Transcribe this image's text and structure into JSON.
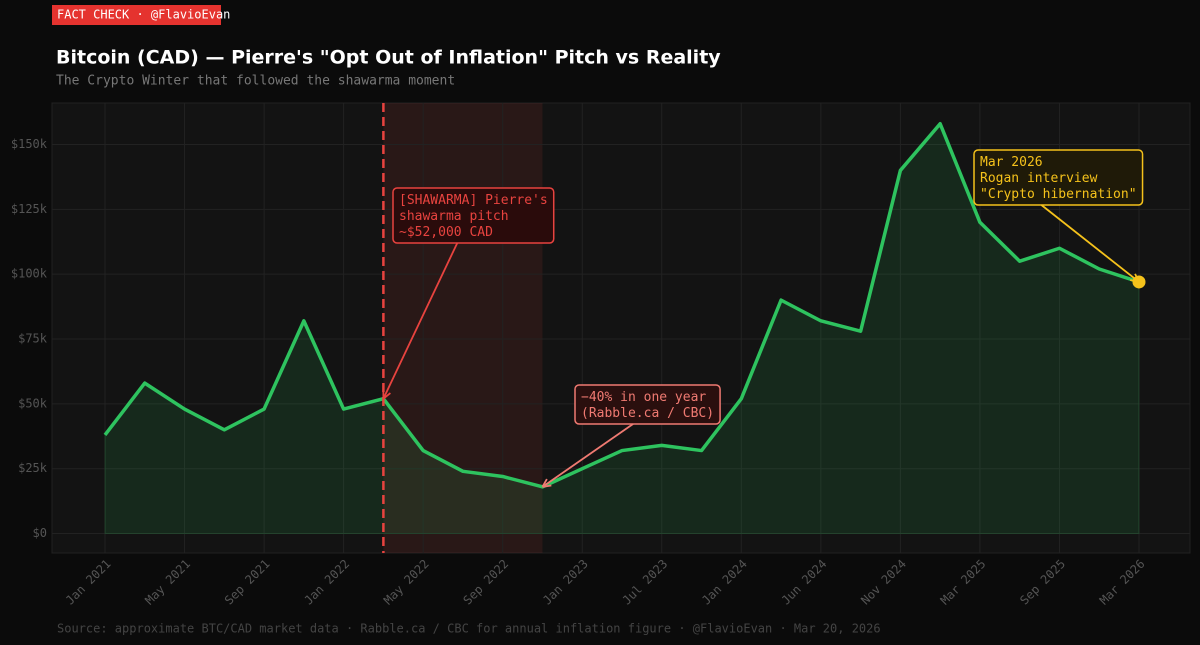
{
  "badge": "FACT CHECK · @FlavioEvan",
  "chart_data": {
    "type": "line",
    "title": "Bitcoin (CAD) — Pierre's \"Opt Out of Inflation\" Pitch vs Reality",
    "subtitle": "The Crypto Winter that followed the shawarma moment",
    "categories": [
      "Jan 2021",
      null,
      "May 2021",
      null,
      "Sep 2021",
      null,
      "Jan 2022",
      null,
      "May 2022",
      null,
      "Sep 2022",
      null,
      "Jan 2023",
      null,
      "Jul 2023",
      null,
      "Jan 2024",
      null,
      "Jun 2024",
      null,
      "Nov 2024",
      null,
      "Mar 2025",
      null,
      "Sep 2025",
      null,
      "Mar 2026"
    ],
    "values": [
      38000,
      58000,
      48000,
      40000,
      48000,
      82000,
      48000,
      52000,
      32000,
      24000,
      22000,
      18000,
      25000,
      32000,
      34000,
      32000,
      52000,
      90000,
      82000,
      78000,
      140000,
      158000,
      120000,
      105000,
      110000,
      102000,
      97000
    ],
    "color": "#2ec35f",
    "ylim": [
      -7500,
      166000
    ],
    "yticks": [
      {
        "value": 0,
        "label": "$0"
      },
      {
        "value": 25000,
        "label": "$25k"
      },
      {
        "value": 50000,
        "label": "$50k"
      },
      {
        "value": 75000,
        "label": "$75k"
      },
      {
        "value": 100000,
        "label": "$100k"
      },
      {
        "value": 125000,
        "label": "$125k"
      },
      {
        "value": 150000,
        "label": "$150k"
      }
    ],
    "grid": true,
    "annotations": [
      {
        "lines": [
          "[SHAWARMA] Pierre's",
          "shawarma pitch",
          "~$52,000 CAD"
        ],
        "color": "#e8433f"
      },
      {
        "lines": [
          "−40% in one year",
          "(Rabble.ca / CBC)"
        ],
        "color": "#f07a72"
      },
      {
        "lines": [
          "Mar 2026",
          "Rogan interview",
          "\"Crypto hibernation\""
        ],
        "color": "#f5c21b"
      }
    ],
    "source": "Source: approximate BTC/CAD market data · Rabble.ca / CBC for annual inflation figure · @FlavioEvan · Mar 20, 2026"
  }
}
